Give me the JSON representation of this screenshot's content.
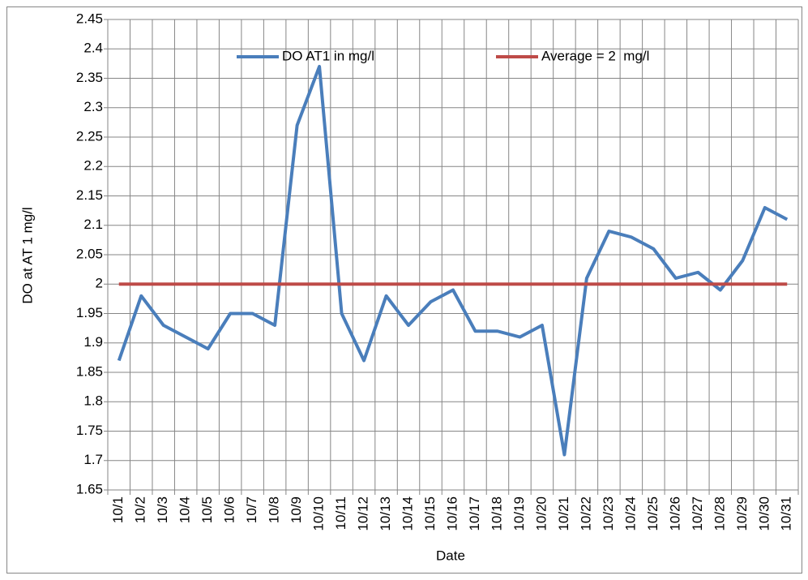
{
  "chart_data": {
    "type": "line",
    "x_label": "Date",
    "y_label": "DO at AT 1 mg/l",
    "categories": [
      "10/1",
      "10/2",
      "10/3",
      "10/4",
      "10/5",
      "10/6",
      "10/7",
      "10/8",
      "10/9",
      "10/10",
      "10/11",
      "10/12",
      "10/13",
      "10/14",
      "10/15",
      "10/16",
      "10/17",
      "10/18",
      "10/19",
      "10/20",
      "10/21",
      "10/22",
      "10/23",
      "10/24",
      "10/25",
      "10/26",
      "10/27",
      "10/28",
      "10/29",
      "10/30",
      "10/31"
    ],
    "series": [
      {
        "name": "DO AT1 in mg/l",
        "color": "#4a7ebb",
        "values": [
          1.87,
          1.98,
          1.93,
          1.91,
          1.89,
          1.95,
          1.95,
          1.93,
          2.27,
          2.37,
          1.95,
          1.87,
          1.98,
          1.93,
          1.97,
          1.99,
          1.92,
          1.92,
          1.91,
          1.93,
          1.71,
          2.01,
          2.09,
          2.08,
          2.06,
          2.01,
          2.02,
          1.99,
          2.04,
          2.13,
          2.11
        ]
      },
      {
        "name": "Average = 2  mg/l",
        "color": "#be4b48",
        "values": [
          2,
          2,
          2,
          2,
          2,
          2,
          2,
          2,
          2,
          2,
          2,
          2,
          2,
          2,
          2,
          2,
          2,
          2,
          2,
          2,
          2,
          2,
          2,
          2,
          2,
          2,
          2,
          2,
          2,
          2,
          2
        ]
      }
    ],
    "ylim": [
      1.65,
      2.45
    ],
    "yticks": [
      1.65,
      1.7,
      1.75,
      1.8,
      1.85,
      1.9,
      1.95,
      2,
      2.05,
      2.1,
      2.15,
      2.2,
      2.25,
      2.3,
      2.35,
      2.4,
      2.45
    ],
    "grid": true,
    "legend": "top"
  }
}
